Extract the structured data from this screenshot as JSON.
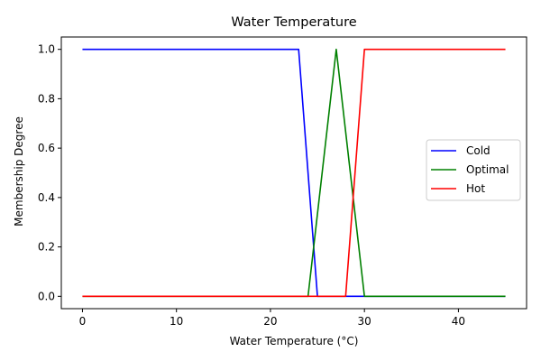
{
  "chart_data": {
    "type": "line",
    "title": "Water Temperature",
    "xlabel": "Water Temperature (°C)",
    "ylabel": "Membership Degree",
    "xlim": [
      -2.25,
      47.25
    ],
    "ylim": [
      -0.05,
      1.05
    ],
    "xticks": [
      0,
      10,
      20,
      30,
      40
    ],
    "yticks": [
      0.0,
      0.2,
      0.4,
      0.6,
      0.8,
      1.0
    ],
    "xtick_labels": [
      "0",
      "10",
      "20",
      "30",
      "40"
    ],
    "ytick_labels": [
      "0.0",
      "0.2",
      "0.4",
      "0.6",
      "0.8",
      "1.0"
    ],
    "grid": false,
    "legend_position": "center-right",
    "series": [
      {
        "name": "Cold",
        "color": "#0000ff",
        "x": [
          0,
          23,
          25,
          45
        ],
        "y": [
          1,
          1,
          0,
          0
        ]
      },
      {
        "name": "Optimal",
        "color": "#008000",
        "x": [
          0,
          24,
          27,
          30,
          45
        ],
        "y": [
          0,
          0,
          1,
          0,
          0
        ]
      },
      {
        "name": "Hot",
        "color": "#ff0000",
        "x": [
          0,
          28,
          30,
          45
        ],
        "y": [
          0,
          0,
          1,
          1
        ]
      }
    ]
  }
}
